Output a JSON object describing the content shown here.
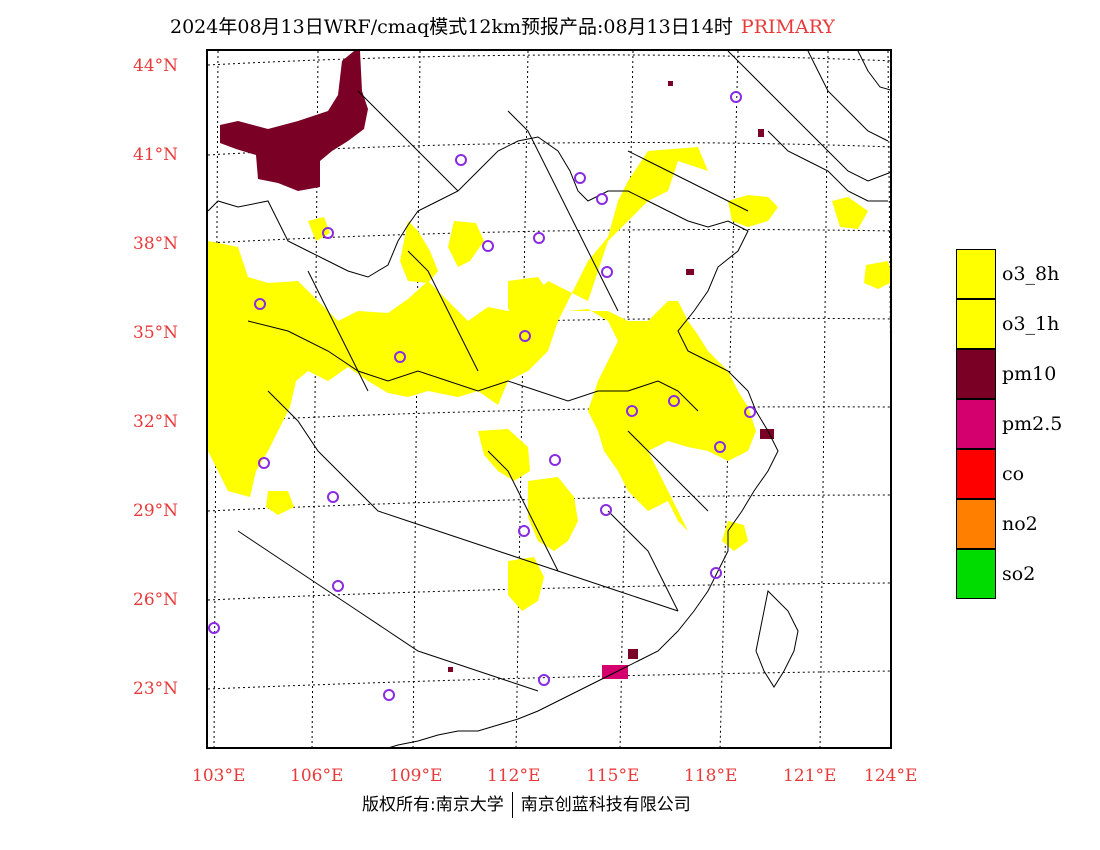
{
  "title": {
    "main": "2024年08月13日WRF/cmaq模式12km预报产品:08月13日14时",
    "tag": "PRIMARY"
  },
  "colors": {
    "label": "#e83a3a",
    "o3": "#ffff00",
    "pm10": "#7a0026",
    "pm25": "#d4006e",
    "co": "#ff0000",
    "no2": "#ff7f00",
    "so2": "#00dc00",
    "station": "#8a2be2"
  },
  "axes": {
    "lat_labels": [
      "44°N",
      "41°N",
      "38°N",
      "35°N",
      "32°N",
      "29°N",
      "26°N",
      "23°N"
    ],
    "lon_labels": [
      "103°E",
      "106°E",
      "109°E",
      "112°E",
      "115°E",
      "118°E",
      "121°E",
      "124°E"
    ]
  },
  "legend": [
    {
      "label": "o3_8h",
      "color": "#ffff00"
    },
    {
      "label": "o3_1h",
      "color": "#ffff00"
    },
    {
      "label": "pm10",
      "color": "#7a0026"
    },
    {
      "label": "pm2.5",
      "color": "#d4006e"
    },
    {
      "label": "co",
      "color": "#ff0000"
    },
    {
      "label": "no2",
      "color": "#ff7f00"
    },
    {
      "label": "so2",
      "color": "#00dc00"
    }
  ],
  "footer": {
    "left": "版权所有:南京大学",
    "right": "南京创蓝科技有限公司"
  }
}
